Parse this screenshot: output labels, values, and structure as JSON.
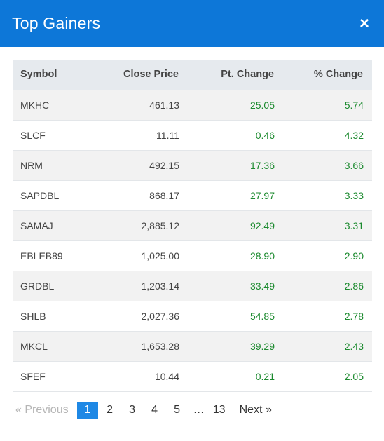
{
  "header": {
    "title": "Top Gainers",
    "close_label": "×"
  },
  "table": {
    "columns": [
      "Symbol",
      "Close Price",
      "Pt. Change",
      "% Change"
    ],
    "rows": [
      {
        "symbol": "MKHC",
        "close": "461.13",
        "pt": "25.05",
        "pct": "5.74"
      },
      {
        "symbol": "SLCF",
        "close": "11.11",
        "pt": "0.46",
        "pct": "4.32"
      },
      {
        "symbol": "NRM",
        "close": "492.15",
        "pt": "17.36",
        "pct": "3.66"
      },
      {
        "symbol": "SAPDBL",
        "close": "868.17",
        "pt": "27.97",
        "pct": "3.33"
      },
      {
        "symbol": "SAMAJ",
        "close": "2,885.12",
        "pt": "92.49",
        "pct": "3.31"
      },
      {
        "symbol": "EBLEB89",
        "close": "1,025.00",
        "pt": "28.90",
        "pct": "2.90"
      },
      {
        "symbol": "GRDBL",
        "close": "1,203.14",
        "pt": "33.49",
        "pct": "2.86"
      },
      {
        "symbol": "SHLB",
        "close": "2,027.36",
        "pt": "54.85",
        "pct": "2.78"
      },
      {
        "symbol": "MKCL",
        "close": "1,653.28",
        "pt": "39.29",
        "pct": "2.43"
      },
      {
        "symbol": "SFEF",
        "close": "10.44",
        "pt": "0.21",
        "pct": "2.05"
      }
    ]
  },
  "pagination": {
    "prev_label": "« Previous",
    "next_label": "Next »",
    "pages": [
      "1",
      "2",
      "3",
      "4",
      "5",
      "…",
      "13"
    ],
    "current": "1"
  },
  "colors": {
    "header_bg": "#0d77d8",
    "positive": "#1b8a2e",
    "active_page": "#1e88e5"
  }
}
